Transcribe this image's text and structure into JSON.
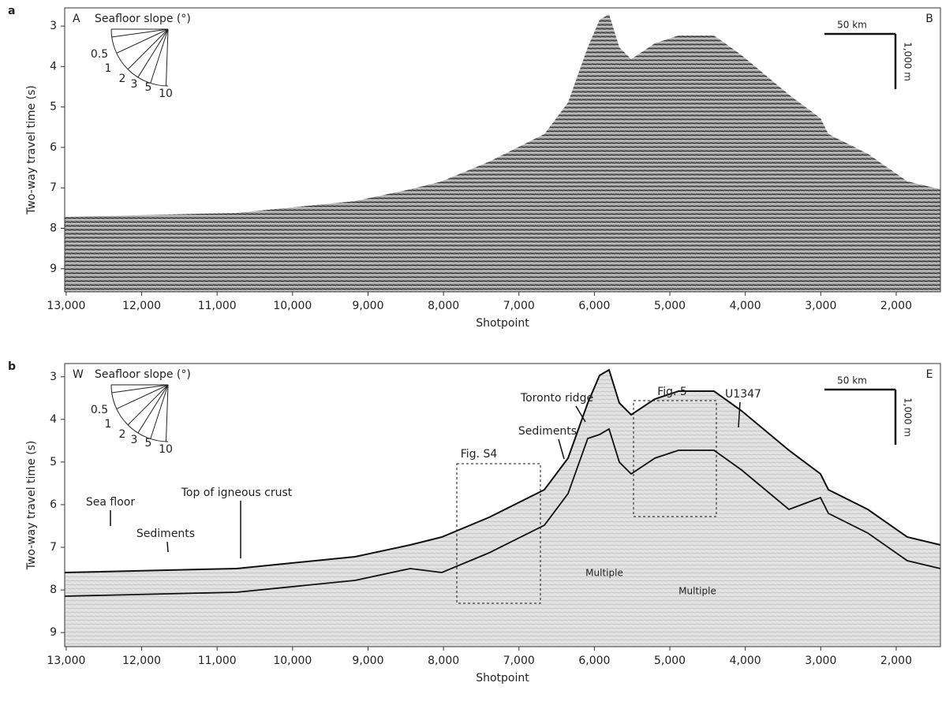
{
  "panels": [
    {
      "label": "a",
      "corner_left": "A",
      "corner_right": "B",
      "y_label": "Two-way travel time (s)",
      "x_label": "Shotpoint",
      "xlim": [
        13020,
        1414
      ],
      "ylim": [
        2.55,
        9.57
      ],
      "xticks": [
        {
          "value": 13000,
          "label": "13,000"
        },
        {
          "value": 12000,
          "label": "12,000"
        },
        {
          "value": 11000,
          "label": "11,000"
        },
        {
          "value": 10000,
          "label": "10,000"
        },
        {
          "value": 9000,
          "label": "9,000"
        },
        {
          "value": 8000,
          "label": "8,000"
        },
        {
          "value": 7000,
          "label": "7,000"
        },
        {
          "value": 6000,
          "label": "6,000"
        },
        {
          "value": 5000,
          "label": "5,000"
        },
        {
          "value": 4000,
          "label": "4,000"
        },
        {
          "value": 3000,
          "label": "3,000"
        },
        {
          "value": 2000,
          "label": "2,000"
        }
      ],
      "yticks": [
        3,
        4,
        5,
        6,
        7,
        8,
        9
      ],
      "slope_legend": {
        "title": "Seafloor slope (°)",
        "labels": [
          "0.5",
          "1",
          "2",
          "3",
          "5",
          "10"
        ]
      },
      "scale_bar": {
        "horizontal": "50 km",
        "vertical": "1,000 m"
      },
      "annotations": []
    },
    {
      "label": "b",
      "corner_left": "W",
      "corner_right": "E",
      "y_label": "Two-way travel time (s)",
      "x_label": "Shotpoint",
      "xlim": [
        13020,
        1414
      ],
      "ylim": [
        2.69,
        9.33
      ],
      "xticks": [
        {
          "value": 13000,
          "label": "13,000"
        },
        {
          "value": 12000,
          "label": "12,000"
        },
        {
          "value": 11000,
          "label": "11,000"
        },
        {
          "value": 10000,
          "label": "10,000"
        },
        {
          "value": 9000,
          "label": "9,000"
        },
        {
          "value": 8000,
          "label": "8,000"
        },
        {
          "value": 7000,
          "label": "7,000"
        },
        {
          "value": 6000,
          "label": "6,000"
        },
        {
          "value": 5000,
          "label": "5,000"
        },
        {
          "value": 4000,
          "label": "4,000"
        },
        {
          "value": 3000,
          "label": "3,000"
        },
        {
          "value": 2000,
          "label": "2,000"
        }
      ],
      "yticks": [
        3,
        4,
        5,
        6,
        7,
        8,
        9
      ],
      "slope_legend": {
        "title": "Seafloor slope (°)",
        "labels": [
          "0.5",
          "1",
          "2",
          "3",
          "5",
          "10"
        ]
      },
      "scale_bar": {
        "horizontal": "50 km",
        "vertical": "1,000 m"
      },
      "annotations": [
        "Sea floor",
        "Sediments",
        "Top of igneous crust",
        "Toronto ridge",
        "Sediments",
        "Fig. S4",
        "Fig. 5",
        "U1347",
        "Multiple",
        "Multiple"
      ]
    }
  ]
}
